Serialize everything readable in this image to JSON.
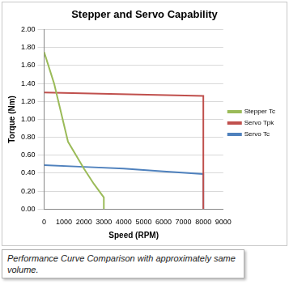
{
  "chart_data": {
    "type": "line",
    "title": "Stepper and Servo Capability",
    "x_label": "Speed (RPM)",
    "y_label": "Torque (Nm)",
    "annotations": [
      "Performance Curve Comparison with approximately same volume."
    ],
    "series": [
      {
        "name": "Stepper Tc",
        "color": "#9bbb59",
        "marker": "none",
        "x": [
          0,
          500,
          1200,
          2000,
          2500,
          3000,
          3000
        ],
        "values": [
          1.75,
          1.4,
          0.75,
          0.45,
          0.28,
          0.13,
          0
        ]
      },
      {
        "name": "Servo Tpk",
        "color": "#c0504d",
        "marker": "none",
        "x": [
          0,
          8000,
          8000
        ],
        "values": [
          1.3,
          1.26,
          0
        ]
      },
      {
        "name": "Servo Tc",
        "color": "#4f81bd",
        "marker": "none",
        "x": [
          0,
          2000,
          4000,
          6000,
          8000,
          8000
        ],
        "values": [
          0.49,
          0.47,
          0.45,
          0.42,
          0.39,
          0
        ]
      }
    ],
    "xlim": [
      0,
      9000
    ],
    "xticks": [
      0,
      1000,
      2000,
      3000,
      4000,
      5000,
      6000,
      7000,
      8000,
      9000
    ],
    "ylim": [
      0,
      2
    ],
    "yticks": [
      {
        "value": 0,
        "label": "0.00"
      },
      {
        "value": 0.2,
        "label": "0.20"
      },
      {
        "value": 0.4,
        "label": "0.40"
      },
      {
        "value": 0.6,
        "label": "0.60"
      },
      {
        "value": 0.8,
        "label": "0.80"
      },
      {
        "value": 1,
        "label": "1.00"
      },
      {
        "value": 1.2,
        "label": "1.20"
      },
      {
        "value": 1.4,
        "label": "1.40"
      },
      {
        "value": 1.6,
        "label": "1.60"
      },
      {
        "value": 1.8,
        "label": "1.80"
      },
      {
        "value": 2,
        "label": "2.00"
      }
    ],
    "grid": true,
    "legend": "right"
  }
}
